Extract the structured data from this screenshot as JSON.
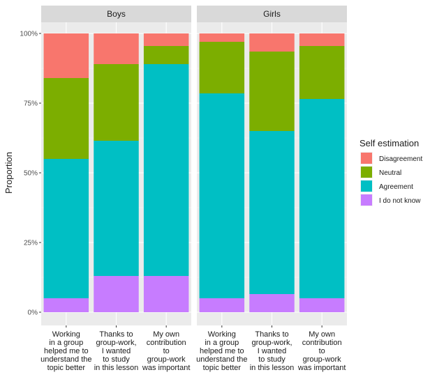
{
  "chart_data": {
    "type": "bar",
    "stacked": true,
    "ylabel": "Proportion",
    "ylim": [
      0,
      1
    ],
    "yticks": [
      0,
      0.25,
      0.5,
      0.75,
      1.0
    ],
    "ytick_labels": [
      "0%",
      "25%",
      "50%",
      "75%",
      "100%"
    ],
    "grid": true,
    "legend": {
      "title": "Self estimation",
      "placement": "right",
      "entries": [
        {
          "key": "disagreement",
          "label": "Disagreement",
          "color": "#F8766D"
        },
        {
          "key": "neutral",
          "label": "Neutral",
          "color": "#7CAE00"
        },
        {
          "key": "agreement",
          "label": "Agreement",
          "color": "#00BFC4"
        },
        {
          "key": "dontknow",
          "label": "I do not know",
          "color": "#C77CFF"
        }
      ]
    },
    "categories": [
      [
        "Working",
        "in a group",
        "helped me to",
        "understand the",
        "topic better"
      ],
      [
        "Thanks to",
        "group-work,",
        "I wanted",
        "to study",
        "in this lesson"
      ],
      [
        "My own",
        "contribution",
        "to",
        "group-work",
        "was important"
      ]
    ],
    "panels": [
      {
        "name": "Boys",
        "series": [
          {
            "key": "dontknow",
            "values": [
              0.05,
              0.13,
              0.13
            ]
          },
          {
            "key": "agreement",
            "values": [
              0.5,
              0.485,
              0.76
            ]
          },
          {
            "key": "neutral",
            "values": [
              0.29,
              0.275,
              0.065
            ]
          },
          {
            "key": "disagreement",
            "values": [
              0.16,
              0.11,
              0.045
            ]
          }
        ]
      },
      {
        "name": "Girls",
        "series": [
          {
            "key": "dontknow",
            "values": [
              0.05,
              0.065,
              0.05
            ]
          },
          {
            "key": "agreement",
            "values": [
              0.735,
              0.585,
              0.715
            ]
          },
          {
            "key": "neutral",
            "values": [
              0.185,
              0.285,
              0.19
            ]
          },
          {
            "key": "disagreement",
            "values": [
              0.03,
              0.065,
              0.045
            ]
          }
        ]
      }
    ]
  }
}
